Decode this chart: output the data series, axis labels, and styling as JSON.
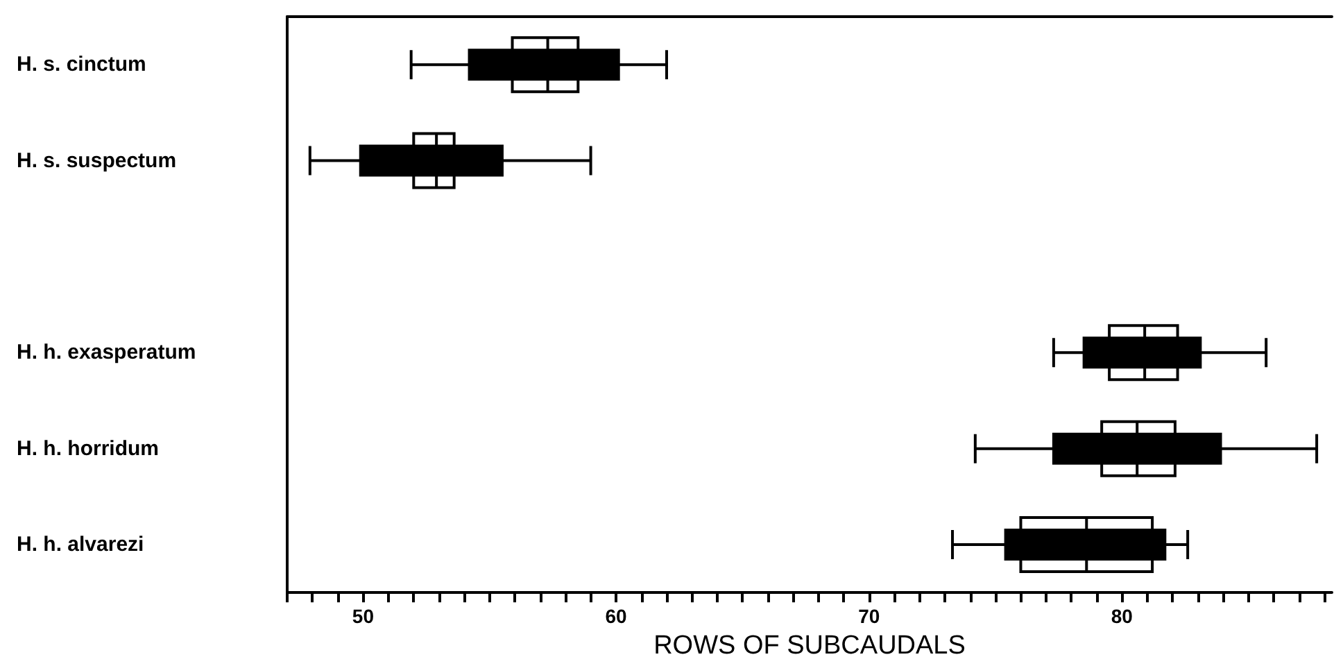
{
  "chart_data": {
    "type": "box",
    "orientation": "horizontal",
    "xlabel": "ROWS OF SUBCAUDALS",
    "categories": [
      "H. s. cinctum",
      "H. s. suspectum",
      null,
      "H. h. exasperatum",
      "H. h. horridum",
      "H. h. alvarezi"
    ],
    "series": [
      {
        "color": "#ffffff",
        "boxes": [
          {
            "low": 55.9,
            "q1": 55.9,
            "median": 57.3,
            "q3": 58.5,
            "high": 58.5
          },
          {
            "low": 52.0,
            "q1": 52.0,
            "median": 52.9,
            "q3": 53.6,
            "high": 53.6
          },
          null,
          {
            "low": 79.5,
            "q1": 79.5,
            "median": 80.9,
            "q3": 82.2,
            "high": 82.2
          },
          {
            "low": 79.2,
            "q1": 79.2,
            "median": 80.6,
            "q3": 82.1,
            "high": 82.1
          },
          {
            "low": 76.0,
            "q1": 76.0,
            "median": 78.6,
            "q3": 81.2,
            "high": 81.2
          }
        ]
      },
      {
        "color": "#000000",
        "boxes": [
          {
            "low": 51.9,
            "q1": 54.2,
            "median": 57.3,
            "q3": 60.1,
            "high": 62.0
          },
          {
            "low": 47.9,
            "q1": 49.9,
            "median": 52.9,
            "q3": 55.5,
            "high": 59.0
          },
          null,
          {
            "low": 77.3,
            "q1": 78.5,
            "median": 80.9,
            "q3": 83.1,
            "high": 85.7
          },
          {
            "low": 74.2,
            "q1": 77.3,
            "median": 80.6,
            "q3": 83.9,
            "high": 87.7
          },
          {
            "low": 73.3,
            "q1": 75.4,
            "median": 78.6,
            "q3": 81.7,
            "high": 82.6
          }
        ]
      }
    ],
    "xlim": [
      47,
      88.3
    ],
    "xticks": [
      {
        "value": 47,
        "label": null
      },
      {
        "value": 48,
        "label": null
      },
      {
        "value": 49,
        "label": null
      },
      50,
      {
        "value": 51,
        "label": null
      },
      {
        "value": 52,
        "label": null
      },
      {
        "value": 53,
        "label": null
      },
      {
        "value": 54,
        "label": null
      },
      {
        "value": 55,
        "label": null
      },
      {
        "value": 56,
        "label": null
      },
      {
        "value": 57,
        "label": null
      },
      {
        "value": 58,
        "label": null
      },
      {
        "value": 59,
        "label": null
      },
      60,
      {
        "value": 61,
        "label": null
      },
      {
        "value": 62,
        "label": null
      },
      {
        "value": 63,
        "label": null
      },
      {
        "value": 64,
        "label": null
      },
      {
        "value": 65,
        "label": null
      },
      {
        "value": 66,
        "label": null
      },
      {
        "value": 67,
        "label": null
      },
      {
        "value": 68,
        "label": null
      },
      {
        "value": 69,
        "label": null
      },
      70,
      {
        "value": 71,
        "label": null
      },
      {
        "value": 72,
        "label": null
      },
      {
        "value": 73,
        "label": null
      },
      {
        "value": 74,
        "label": null
      },
      {
        "value": 75,
        "label": null
      },
      {
        "value": 76,
        "label": null
      },
      {
        "value": 77,
        "label": null
      },
      {
        "value": 78,
        "label": null
      },
      {
        "value": 79,
        "label": null
      },
      80,
      {
        "value": 81,
        "label": null
      },
      {
        "value": 82,
        "label": null
      },
      {
        "value": 83,
        "label": null
      },
      {
        "value": 84,
        "label": null
      },
      {
        "value": 85,
        "label": null
      },
      {
        "value": 86,
        "label": null
      },
      {
        "value": 87,
        "label": null
      },
      {
        "value": 88,
        "label": null
      }
    ],
    "grid": false
  }
}
